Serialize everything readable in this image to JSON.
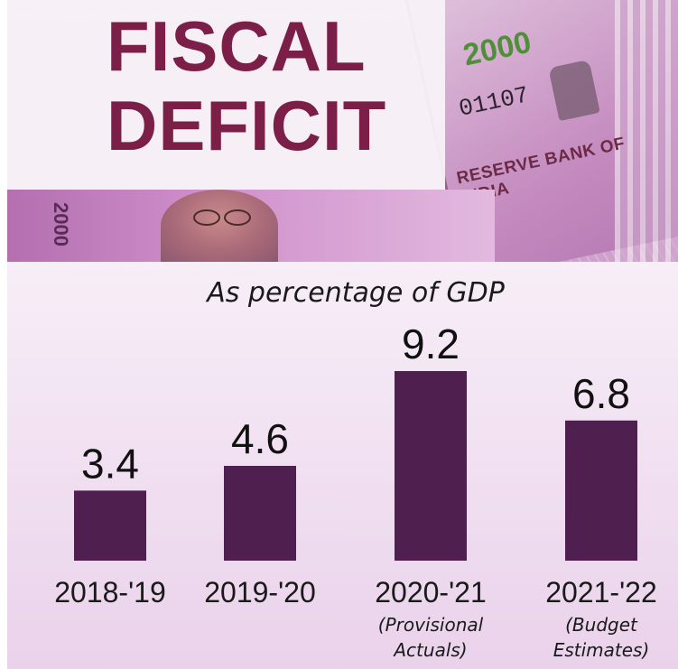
{
  "header": {
    "title_line_1": "FISCAL",
    "title_line_2": "DEFICIT"
  },
  "banknote": {
    "denomination": "2000",
    "serial": "01107",
    "issuer": "RESERVE BANK OF INDIA"
  },
  "colors": {
    "bar": "#4f1f4f",
    "title": "#7c1f48",
    "background": "#f2e3f2"
  },
  "chart_data": {
    "type": "bar",
    "title": "",
    "subtitle": "As percentage of GDP",
    "categories": [
      "2018-'19",
      "2019-'20",
      "2020-'21",
      "2021-'22"
    ],
    "category_notes": [
      [
        "",
        ""
      ],
      [
        "",
        ""
      ],
      [
        "(Provisional",
        "Actuals)"
      ],
      [
        "(Budget",
        "Estimates)"
      ]
    ],
    "values": [
      3.4,
      4.6,
      9.2,
      6.8
    ],
    "value_labels": [
      "3.4",
      "4.6",
      "9.2",
      "6.8"
    ],
    "xlabel": "",
    "ylabel": "",
    "ylim": [
      0,
      9.2
    ],
    "grid": false,
    "legend": "none"
  }
}
